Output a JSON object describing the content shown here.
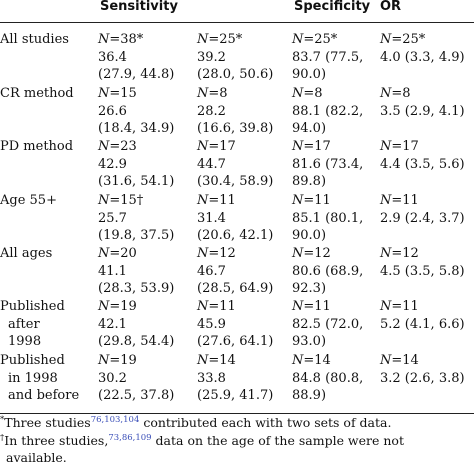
{
  "header": {
    "sensitivity": "Sensitivity",
    "specificity": "Specificity",
    "or": "OR"
  },
  "rows": [
    {
      "label": [
        "All studies"
      ],
      "sens": [
        "N=38*",
        "36.4",
        "(27.9, 44.8)"
      ],
      "n2": [
        "N=25*",
        "39.2",
        "(28.0, 50.6)"
      ],
      "spec": [
        "N=25*",
        "83.7 (77.5,",
        "90.0)"
      ],
      "or": [
        "N=25*",
        "4.0 (3.3, 4.9)"
      ]
    },
    {
      "label": [
        "CR method"
      ],
      "sens": [
        "N=15",
        "26.6",
        "(18.4, 34.9)"
      ],
      "n2": [
        "N=8",
        "28.2",
        "(16.6, 39.8)"
      ],
      "spec": [
        "N=8",
        "88.1 (82.2,",
        "94.0)"
      ],
      "or": [
        "N=8",
        "3.5 (2.9, 4.1)"
      ]
    },
    {
      "label": [
        "PD method"
      ],
      "sens": [
        "N=23",
        "42.9",
        "(31.6, 54.1)"
      ],
      "n2": [
        "N=17",
        "44.7",
        "(30.4, 58.9)"
      ],
      "spec": [
        "N=17",
        "81.6 (73.4,",
        "89.8)"
      ],
      "or": [
        "N=17",
        "4.4 (3.5, 5.6)"
      ]
    },
    {
      "label": [
        "Age 55+"
      ],
      "sens": [
        "N=15†",
        "25.7",
        "(19.8, 37.5)"
      ],
      "n2": [
        "N=11",
        "31.4",
        "(20.6, 42.1)"
      ],
      "spec": [
        "N=11",
        "85.1 (80.1,",
        "90.0)"
      ],
      "or": [
        "N=11",
        "2.9 (2.4, 3.7)"
      ]
    },
    {
      "label": [
        "All ages"
      ],
      "sens": [
        "N=20",
        "41.1",
        "(28.3, 53.9)"
      ],
      "n2": [
        "N=12",
        "46.7",
        "(28.5, 64.9)"
      ],
      "spec": [
        "N=12",
        "80.6 (68.9,",
        "92.3)"
      ],
      "or": [
        "N=12",
        "4.5 (3.5, 5.8)"
      ]
    },
    {
      "label": [
        "Published",
        "after",
        "1998"
      ],
      "sens": [
        "N=19",
        "42.1",
        "(29.8, 54.4)"
      ],
      "n2": [
        "N=11",
        "45.9",
        "(27.6, 64.1)"
      ],
      "spec": [
        "N=11",
        "82.5 (72.0,",
        "93.0)"
      ],
      "or": [
        "N=11",
        "5.2 (4.1, 6.6)"
      ]
    },
    {
      "label": [
        "Published",
        "in 1998",
        "and before"
      ],
      "sens": [
        "N=19",
        "30.2",
        "(22.5, 37.8)"
      ],
      "n2": [
        "N=14",
        "33.8",
        "(25.9, 41.7)"
      ],
      "spec": [
        "N=14",
        "84.8 (80.8,",
        "88.9)"
      ],
      "or": [
        "N=14",
        "3.2 (2.6, 3.8)"
      ]
    }
  ],
  "footnotes": {
    "star_mark": "*",
    "star_pre": "Three studies",
    "star_refs": "76,103,104",
    "star_post": " contributed each with two sets of data.",
    "dagger_mark": "†",
    "dagger_pre": "In three studies,",
    "dagger_refs": "73,86,109",
    "dagger_post": " data on the age of the sample were not",
    "dagger_cont": "available."
  }
}
